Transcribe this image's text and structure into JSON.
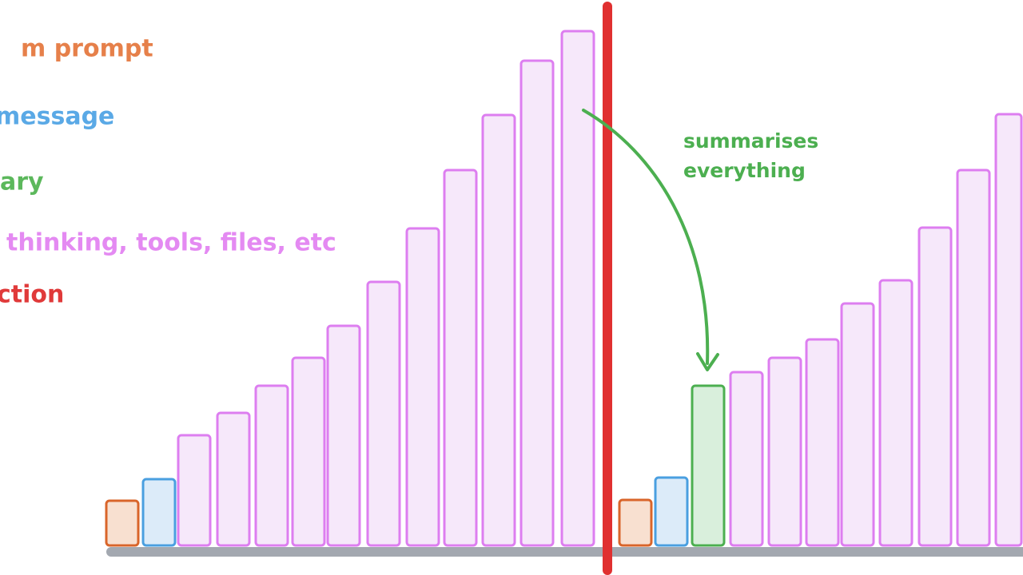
{
  "legend": [
    {
      "label": "m prompt",
      "color": "#e6804a"
    },
    {
      "label": "message",
      "color": "#5aa9e6"
    },
    {
      "label": "ary",
      "color": "#5cb85c"
    },
    {
      "label": "thinking, tools, files, etc",
      "color": "#e48af2"
    },
    {
      "label": "ction",
      "color": "#e03a3a"
    }
  ],
  "annotation": {
    "lines": [
      "summarises",
      "everything"
    ]
  }
}
